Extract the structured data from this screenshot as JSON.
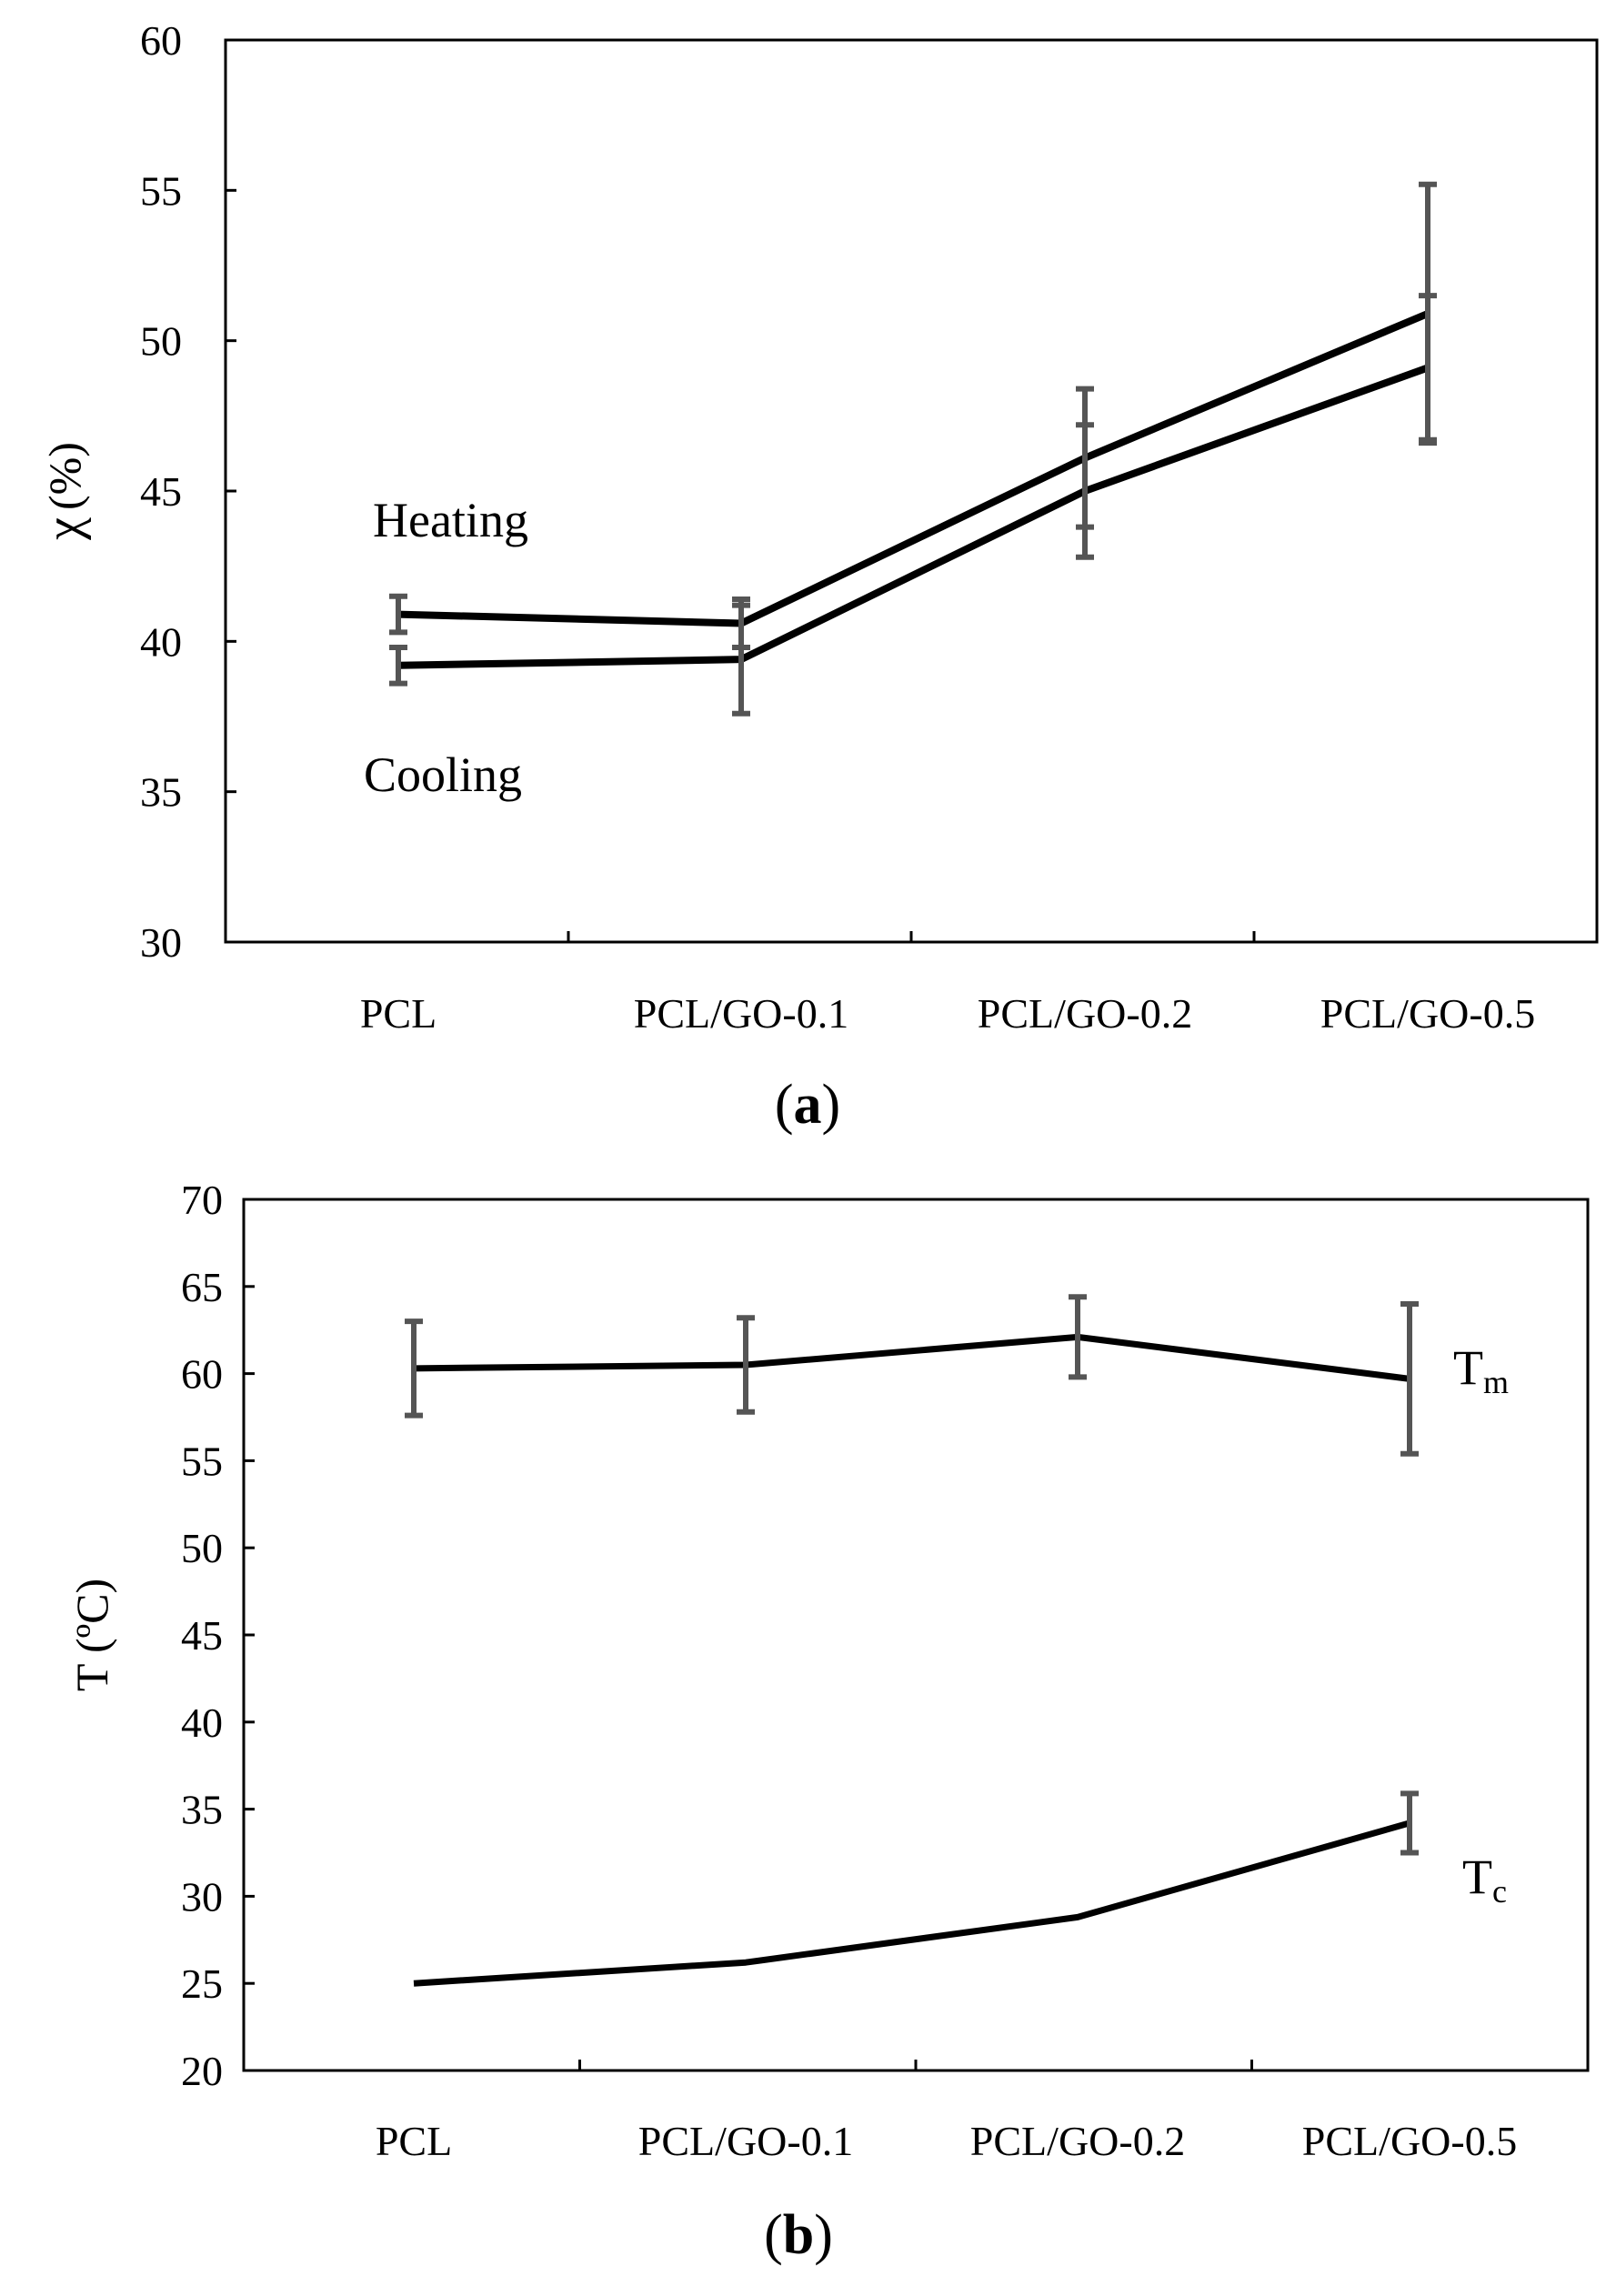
{
  "chart_data": [
    {
      "id": "a",
      "type": "line",
      "panel_label": {
        "open": "(",
        "letter": "a",
        "close": ")"
      },
      "categories": [
        "PCL",
        "PCL/GO-0.1",
        "PCL/GO-0.2",
        "PCL/GO-0.5"
      ],
      "ylabel": {
        "symbol": "χ",
        "unit": "(%)"
      },
      "ylim": [
        30,
        60
      ],
      "yticks": [
        30,
        35,
        40,
        45,
        50,
        55,
        60
      ],
      "series": [
        {
          "name": "Heating",
          "values": [
            40.9,
            40.6,
            46.1,
            50.9
          ],
          "errors": [
            0.6,
            0.8,
            2.3,
            4.3
          ]
        },
        {
          "name": "Cooling",
          "values": [
            39.2,
            39.4,
            45.0,
            49.1
          ],
          "errors": [
            0.6,
            1.8,
            2.2,
            2.4
          ]
        }
      ],
      "annotations": [
        {
          "text": "Heating",
          "series": "Heating"
        },
        {
          "text": "Cooling",
          "series": "Cooling"
        }
      ]
    },
    {
      "id": "b",
      "type": "line",
      "panel_label": {
        "open": "(",
        "letter": "b",
        "close": ")"
      },
      "categories": [
        "PCL",
        "PCL/GO-0.1",
        "PCL/GO-0.2",
        "PCL/GO-0.5"
      ],
      "ylabel": "T (ºC)",
      "ylim": [
        20,
        70
      ],
      "yticks": [
        20,
        25,
        30,
        35,
        40,
        45,
        50,
        55,
        60,
        65,
        70
      ],
      "series": [
        {
          "name": "Tm",
          "values": [
            60.3,
            60.5,
            62.1,
            59.7
          ],
          "errors": [
            2.7,
            2.7,
            2.3,
            4.3
          ]
        },
        {
          "name": "Tc",
          "values": [
            25.0,
            26.2,
            28.8,
            34.2
          ],
          "errors": [
            null,
            null,
            null,
            1.7
          ]
        }
      ],
      "annotations": [
        {
          "base": "T",
          "sub": "m",
          "series": "Tm"
        },
        {
          "base": "T",
          "sub": "c",
          "series": "Tc"
        }
      ]
    }
  ]
}
